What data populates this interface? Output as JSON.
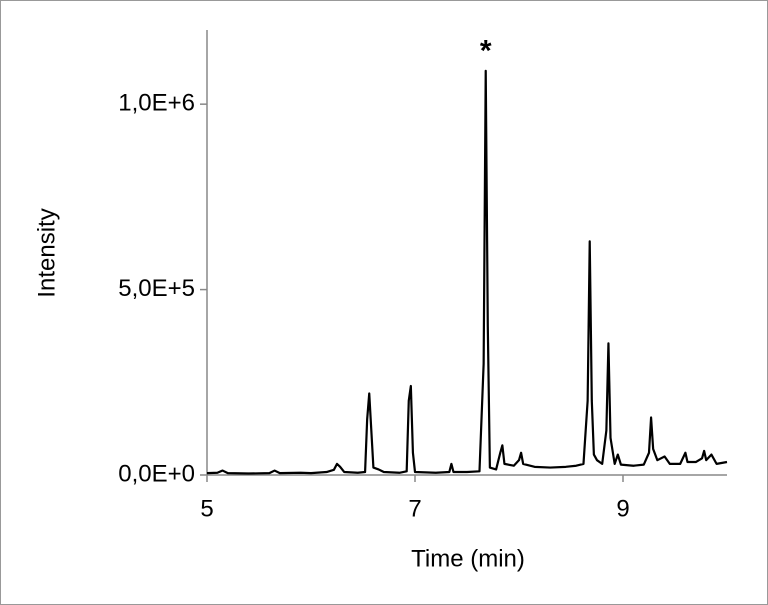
{
  "chart_data": {
    "type": "line",
    "x_label": "Time (min)",
    "y_label": "Intensity",
    "annotation": "*",
    "xlim": [
      5,
      10
    ],
    "xticks": [
      5,
      7,
      9
    ],
    "ylim": [
      0,
      1200000
    ],
    "yticks": [
      {
        "value": 0,
        "label": "0,0E+0"
      },
      {
        "value": 500000,
        "label": "5,0E+5"
      },
      {
        "value": 1000000,
        "label": "1,0E+6"
      }
    ],
    "color": "#000000",
    "x": [
      5.0,
      5.1,
      5.15,
      5.2,
      5.4,
      5.6,
      5.65,
      5.7,
      5.9,
      6.0,
      6.15,
      6.22,
      6.25,
      6.28,
      6.32,
      6.45,
      6.52,
      6.54,
      6.56,
      6.58,
      6.6,
      6.65,
      6.7,
      6.85,
      6.92,
      6.94,
      6.96,
      6.98,
      7.0,
      7.2,
      7.33,
      7.35,
      7.37,
      7.5,
      7.62,
      7.66,
      7.68,
      7.7,
      7.72,
      7.78,
      7.82,
      7.84,
      7.86,
      7.95,
      8.0,
      8.02,
      8.04,
      8.15,
      8.3,
      8.45,
      8.55,
      8.62,
      8.66,
      8.68,
      8.7,
      8.72,
      8.75,
      8.8,
      8.84,
      8.86,
      8.88,
      8.92,
      8.95,
      8.98,
      9.1,
      9.2,
      9.25,
      9.27,
      9.29,
      9.33,
      9.4,
      9.45,
      9.55,
      9.6,
      9.62,
      9.7,
      9.76,
      9.78,
      9.8,
      9.85,
      9.9,
      10.0
    ],
    "values": [
      5000,
      6000,
      12000,
      5000,
      4000,
      5000,
      12000,
      5000,
      6000,
      5000,
      8000,
      14000,
      30000,
      22000,
      8000,
      6000,
      8000,
      150000,
      220000,
      120000,
      20000,
      15000,
      8000,
      6000,
      10000,
      200000,
      240000,
      60000,
      8000,
      6000,
      8000,
      30000,
      8000,
      8000,
      10000,
      300000,
      1090000,
      400000,
      20000,
      15000,
      60000,
      80000,
      30000,
      25000,
      40000,
      60000,
      30000,
      22000,
      20000,
      22000,
      25000,
      30000,
      200000,
      630000,
      200000,
      55000,
      40000,
      30000,
      120000,
      355000,
      100000,
      30000,
      55000,
      28000,
      25000,
      28000,
      60000,
      155000,
      70000,
      40000,
      50000,
      30000,
      30000,
      60000,
      35000,
      35000,
      45000,
      65000,
      40000,
      55000,
      30000,
      35000
    ]
  }
}
